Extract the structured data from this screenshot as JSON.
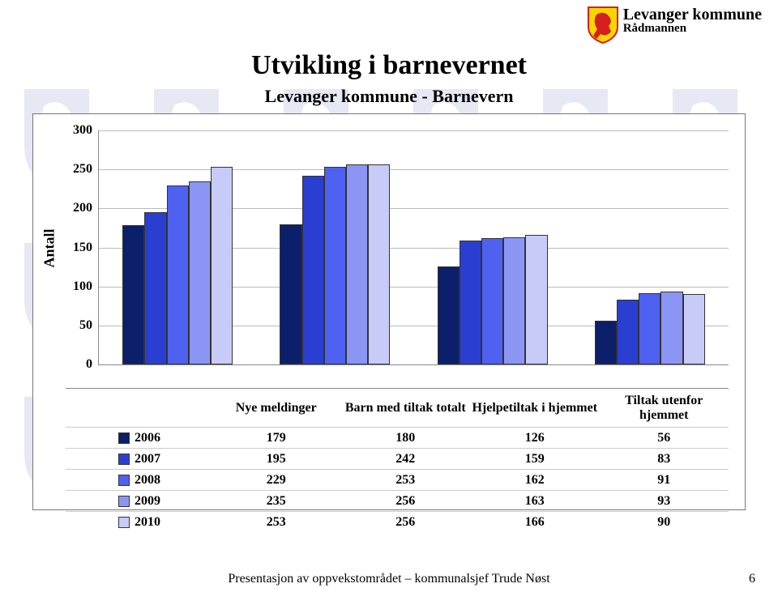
{
  "header": {
    "org": "Levanger kommune",
    "dept": "Rådmannen",
    "org_fontsize": 20,
    "dept_fontsize": 15,
    "crest": {
      "bg": "#f6d600",
      "border": "#d61f1f",
      "horse": "#d61f1f"
    }
  },
  "title": {
    "main": "Utvikling i barnevernet",
    "main_fontsize": 34,
    "sub": "Levanger kommune - Barnevern",
    "sub_fontsize": 22
  },
  "chart": {
    "type": "bar",
    "y_label": "Antall",
    "y_label_fontsize": 18,
    "ylim": [
      0,
      300
    ],
    "ytick_step": 50,
    "yticks": [
      0,
      50,
      100,
      150,
      200,
      250,
      300
    ],
    "categories": [
      "Nye meldinger",
      "Barn med tiltak totalt",
      "Hjelpetiltak i hjemmet",
      "Tiltak utenfor hjemmet"
    ],
    "cat_label_fontsize": 16,
    "series": [
      {
        "year": "2006",
        "color": "#0b1f6b",
        "values": [
          179,
          180,
          126,
          56
        ]
      },
      {
        "year": "2007",
        "color": "#2a3fd1",
        "values": [
          195,
          242,
          159,
          83
        ]
      },
      {
        "year": "2008",
        "color": "#4f61f0",
        "values": [
          229,
          253,
          162,
          91
        ]
      },
      {
        "year": "2009",
        "color": "#8b96f4",
        "values": [
          235,
          256,
          163,
          93
        ]
      },
      {
        "year": "2010",
        "color": "#c7cbf8",
        "values": [
          253,
          256,
          166,
          90
        ]
      }
    ],
    "tick_fontsize": 16,
    "cell_fontsize": 16,
    "grid_color": "#bbbbbb",
    "axis_color": "#888888",
    "bar_border": "#333333",
    "bg_color": "#ffffff"
  },
  "footer": {
    "text": "Presentasjon av oppvekstområdet – kommunalsjef Trude Nøst",
    "fontsize": 16,
    "page_number": "6"
  },
  "watermark": {
    "color": "#3a4aa8"
  }
}
